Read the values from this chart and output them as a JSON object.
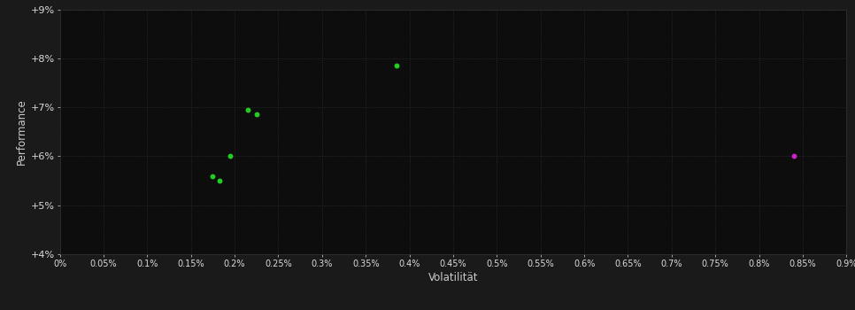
{
  "background_color": "#1a1a1a",
  "plot_bg_color": "#0d0d0d",
  "text_color": "#ffffff",
  "tick_label_color": "#dddddd",
  "axis_label_color": "#cccccc",
  "green_points": [
    [
      0.00385,
      0.0785
    ],
    [
      0.00215,
      0.0695
    ],
    [
      0.00225,
      0.0685
    ],
    [
      0.00195,
      0.06
    ],
    [
      0.00175,
      0.056
    ],
    [
      0.00183,
      0.055
    ]
  ],
  "magenta_point": [
    0.0084,
    0.06
  ],
  "xlim": [
    0.0,
    0.009
  ],
  "ylim": [
    0.04,
    0.09
  ],
  "x_ticks": [
    0.0,
    0.0005,
    0.001,
    0.0015,
    0.002,
    0.0025,
    0.003,
    0.0035,
    0.004,
    0.0045,
    0.005,
    0.0055,
    0.006,
    0.0065,
    0.007,
    0.0075,
    0.008,
    0.0085,
    0.009
  ],
  "x_tick_labels": [
    "0%",
    "0.05%",
    "0.1%",
    "0.15%",
    "0.2%",
    "0.25%",
    "0.3%",
    "0.35%",
    "0.4%",
    "0.45%",
    "0.5%",
    "0.55%",
    "0.6%",
    "0.65%",
    "0.7%",
    "0.75%",
    "0.8%",
    "0.85%",
    "0.9%"
  ],
  "y_ticks": [
    0.04,
    0.05,
    0.06,
    0.07,
    0.08,
    0.09
  ],
  "y_tick_labels": [
    "+4%",
    "+5%",
    "+6%",
    "+7%",
    "+8%",
    "+9%"
  ],
  "xlabel": "Volatilität",
  "ylabel": "Performance",
  "marker_size": 18,
  "green_color": "#22cc22",
  "magenta_color": "#cc22cc",
  "grid_color": "#303030",
  "spine_color": "#333333"
}
